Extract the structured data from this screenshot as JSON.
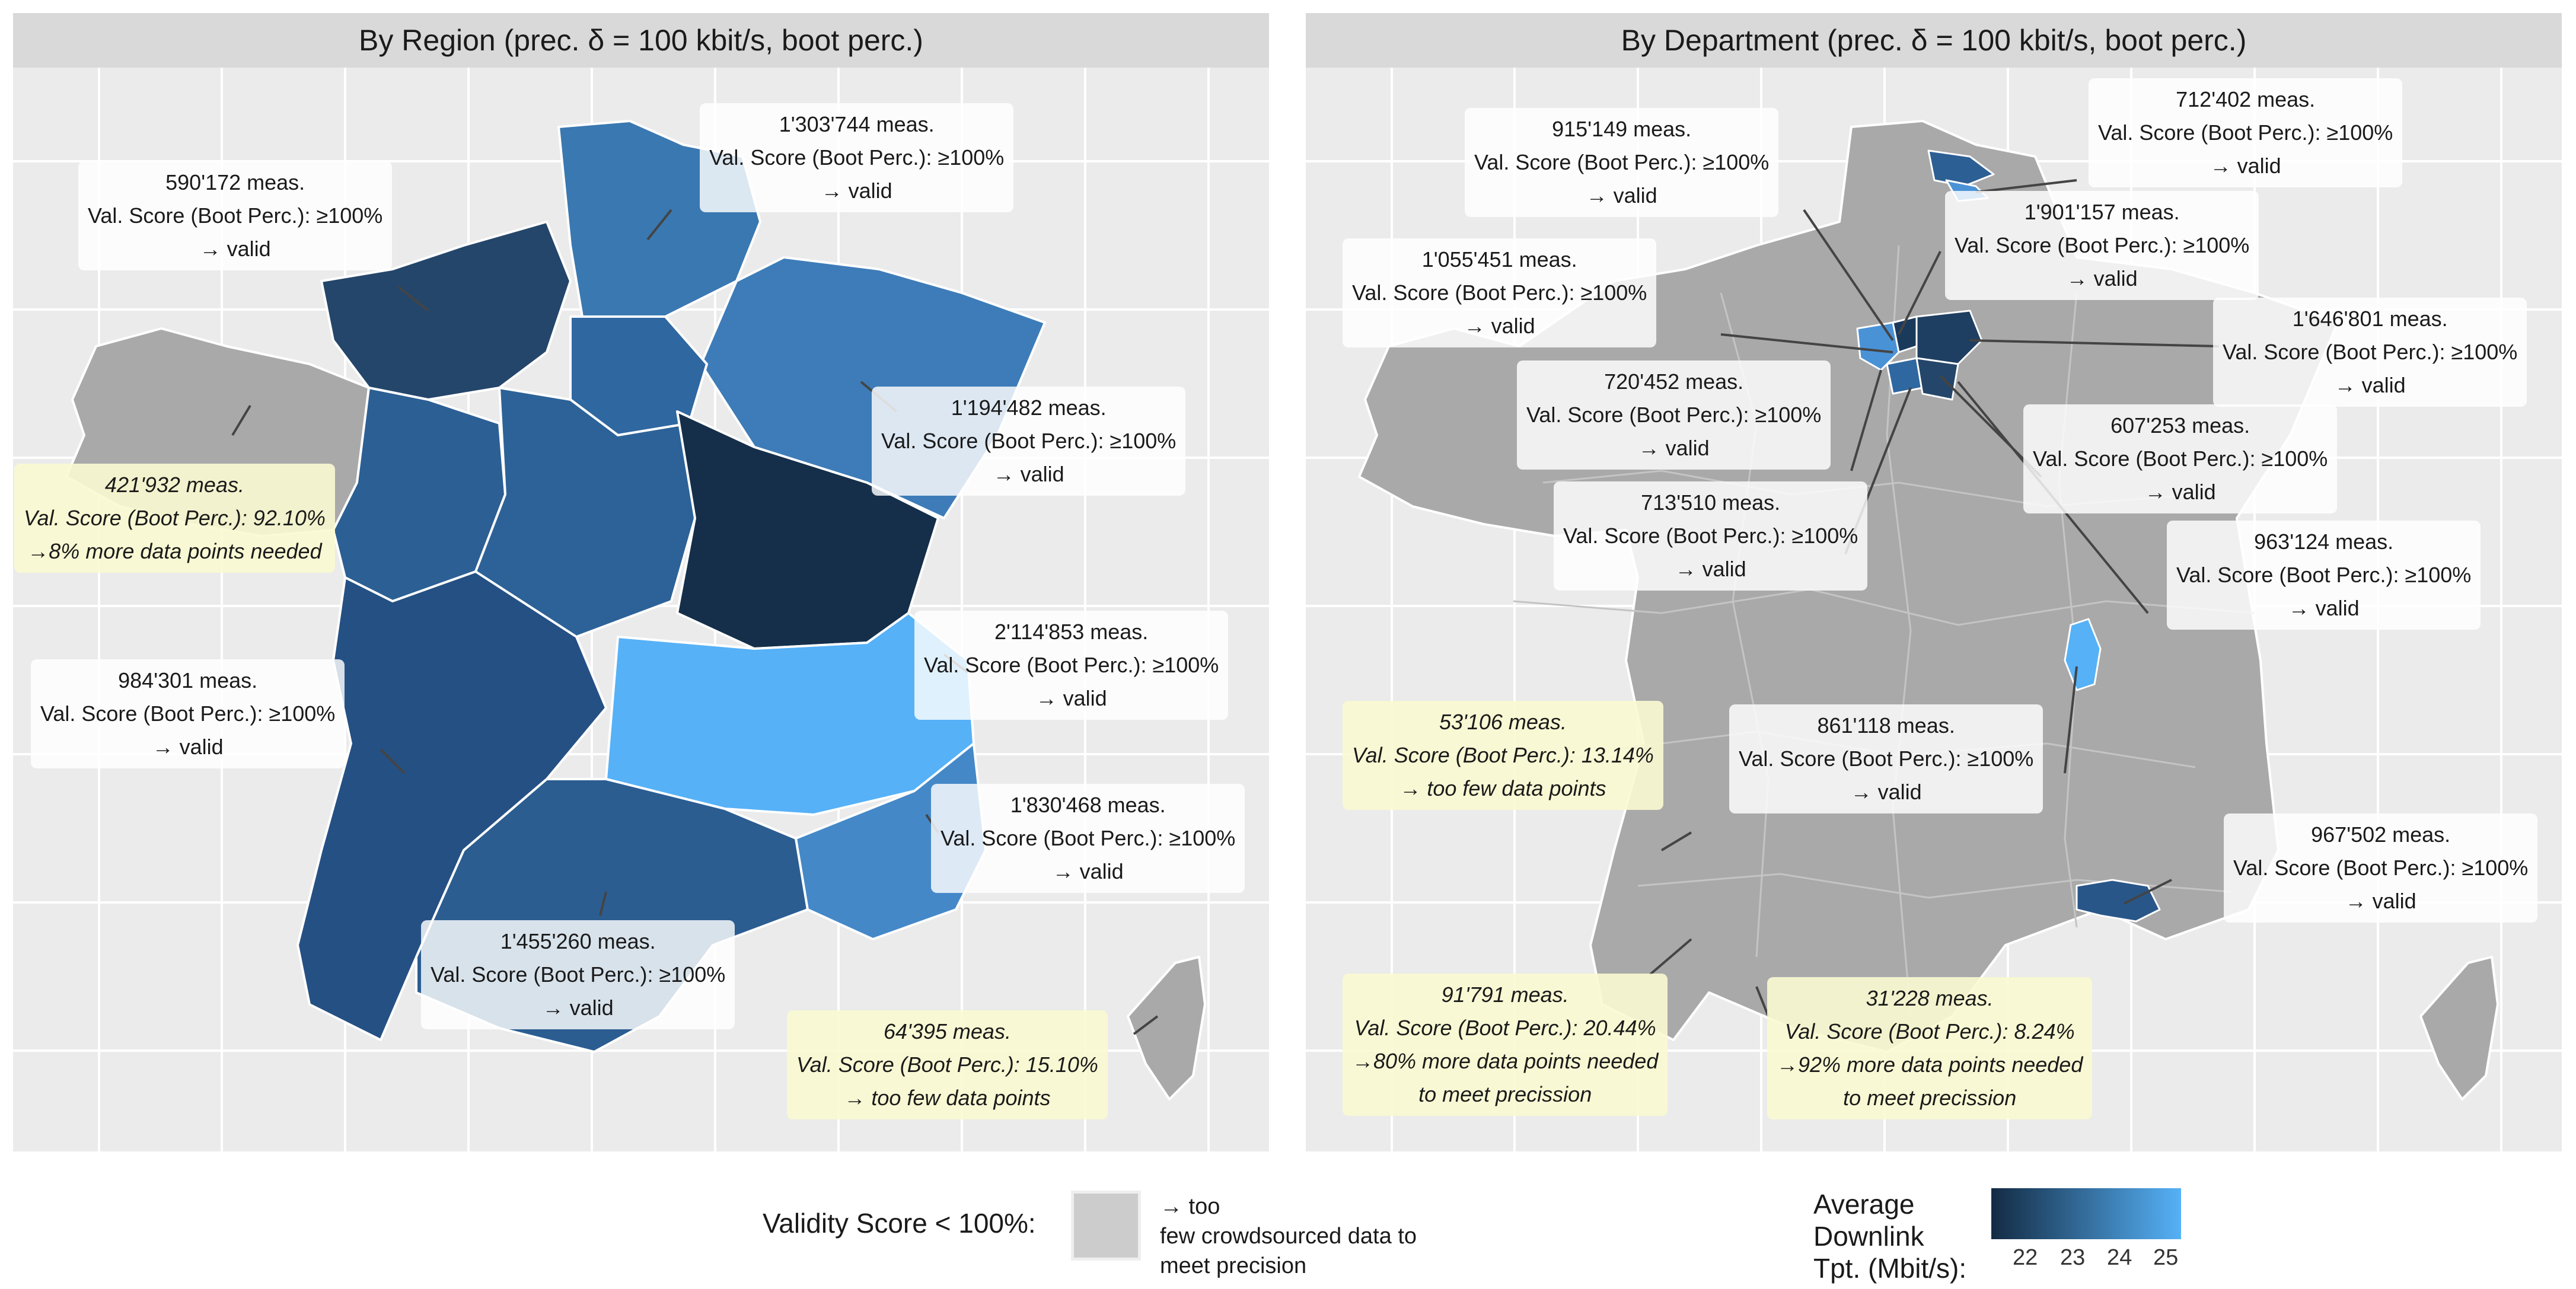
{
  "panels": {
    "left": {
      "title": "By Region (prec. δ = 100 kbit/s, boot perc.)",
      "labels": [
        {
          "meas": "590'172 meas.",
          "score": "Val. Score (Boot Perc.): ≥100%",
          "note": "→ valid"
        },
        {
          "meas": "1'303'744 meas.",
          "score": "Val. Score (Boot Perc.): ≥100%",
          "note": "→ valid"
        },
        {
          "meas": "1'194'482 meas.",
          "score": "Val. Score (Boot Perc.): ≥100%",
          "note": "→ valid"
        },
        {
          "meas": "421'932 meas.",
          "score": "Val. Score (Boot Perc.):   92.10%",
          "note": "→8% more data points needed"
        },
        {
          "meas": "2'114'853 meas.",
          "score": "Val. Score (Boot Perc.): ≥100%",
          "note": "→ valid"
        },
        {
          "meas": "984'301 meas.",
          "score": "Val. Score (Boot Perc.): ≥100%",
          "note": "→ valid"
        },
        {
          "meas": "1'830'468 meas.",
          "score": "Val. Score (Boot Perc.): ≥100%",
          "note": "→ valid"
        },
        {
          "meas": "1'455'260 meas.",
          "score": "Val. Score (Boot Perc.): ≥100%",
          "note": "→ valid"
        },
        {
          "meas": "64'395 meas.",
          "score": "Val. Score (Boot Perc.):   15.10%",
          "note": "→ too few data points"
        }
      ]
    },
    "right": {
      "title": "By Department (prec. δ = 100 kbit/s, boot perc.)",
      "labels": [
        {
          "meas": "915'149 meas.",
          "score": "Val. Score (Boot Perc.): ≥100%",
          "note": "→ valid"
        },
        {
          "meas": "712'402 meas.",
          "score": "Val. Score (Boot Perc.): ≥100%",
          "note": "→ valid"
        },
        {
          "meas": "1'901'157 meas.",
          "score": "Val. Score (Boot Perc.): ≥100%",
          "note": "→ valid"
        },
        {
          "meas": "1'055'451 meas.",
          "score": "Val. Score (Boot Perc.): ≥100%",
          "note": "→ valid"
        },
        {
          "meas": "1'646'801 meas.",
          "score": "Val. Score (Boot Perc.): ≥100%",
          "note": "→ valid"
        },
        {
          "meas": "720'452 meas.",
          "score": "Val. Score (Boot Perc.): ≥100%",
          "note": "→ valid"
        },
        {
          "meas": "607'253 meas.",
          "score": "Val. Score (Boot Perc.): ≥100%",
          "note": "→ valid"
        },
        {
          "meas": "713'510 meas.",
          "score": "Val. Score (Boot Perc.): ≥100%",
          "note": "→ valid"
        },
        {
          "meas": "963'124 meas.",
          "score": "Val. Score (Boot Perc.): ≥100%",
          "note": "→ valid"
        },
        {
          "meas": "53'106 meas.",
          "score": "Val. Score (Boot Perc.):   13.14%",
          "note": "→ too few data points"
        },
        {
          "meas": "861'118 meas.",
          "score": "Val. Score (Boot Perc.): ≥100%",
          "note": "→ valid"
        },
        {
          "meas": "967'502 meas.",
          "score": "Val. Score (Boot Perc.): ≥100%",
          "note": "→ valid"
        },
        {
          "meas": "91'791 meas.",
          "score": "Val. Score (Boot Perc.):   20.44%",
          "note": "→80% more data points needed",
          "note2": "to meet precission"
        },
        {
          "meas": "31'228 meas.",
          "score": "Val. Score (Boot Perc.):    8.24%",
          "note": "→92% more data points needed",
          "note2": "to meet precission"
        }
      ]
    }
  },
  "legend": {
    "validity_title": "Validity Score < 100%:",
    "validity_text_1": "→ too",
    "validity_text_2": "few crowdsourced data to",
    "validity_text_3": "meet precision",
    "swatch_color": "#cccccc",
    "colorbar_title_1": "Average",
    "colorbar_title_2": "Downlink",
    "colorbar_title_3": "Tpt. (Mbit/s):",
    "colorbar_ticks": [
      "22",
      "23",
      "24",
      "25"
    ],
    "colorbar_low": "#132b43",
    "colorbar_high": "#56b1f7"
  },
  "colors": {
    "panel_bg": "#ebebeb",
    "strip_bg": "#d9d9d9",
    "na_fill": "#a9a9a9"
  }
}
